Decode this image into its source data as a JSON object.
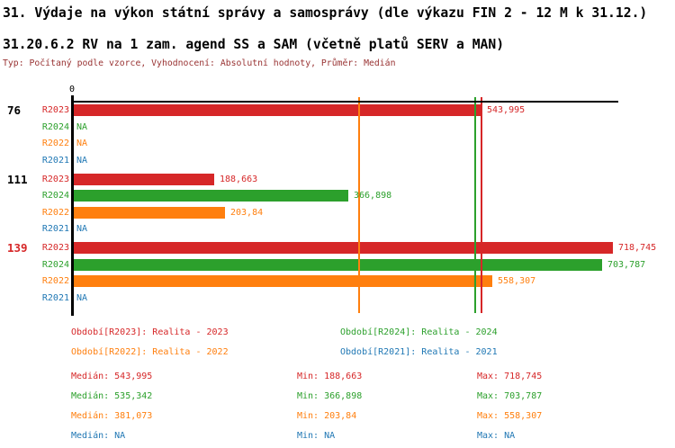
{
  "title": "31. Výdaje na výkon státní správy a samosprávy (dle výkazu FIN 2 - 12 M k 31.12.)",
  "subtitle": "31.20.6.2 RV na 1 zam. agend SS a SAM (včetně platů SERV a MAN)",
  "meta_line": "Typ: Počítaný podle vzorce, Vyhodnocení: Absolutní hodnoty, Průměr: Medián",
  "meta_color": "#993333",
  "chart_data": {
    "type": "bar",
    "orientation": "horizontal",
    "zero_tick_label": "0",
    "grid": false,
    "series_colors": {
      "R2023": "#d62728",
      "R2024": "#2ca02c",
      "R2022": "#ff7f0e",
      "R2021": "#1f77b4"
    },
    "groups": [
      {
        "label": "76",
        "label_color": "#000000",
        "rows": [
          {
            "series": "R2023",
            "value": 543995,
            "display": "543,995"
          },
          {
            "series": "R2024",
            "value": null,
            "display": "NA"
          },
          {
            "series": "R2022",
            "value": null,
            "display": "NA"
          },
          {
            "series": "R2021",
            "value": null,
            "display": "NA"
          }
        ]
      },
      {
        "label": "111",
        "label_color": "#000000",
        "rows": [
          {
            "series": "R2023",
            "value": 188663,
            "display": "188,663"
          },
          {
            "series": "R2024",
            "value": 366898,
            "display": "366,898"
          },
          {
            "series": "R2022",
            "value": 203840,
            "display": "203,84"
          },
          {
            "series": "R2021",
            "value": null,
            "display": "NA"
          }
        ]
      },
      {
        "label": "139",
        "label_color": "#d62728",
        "rows": [
          {
            "series": "R2023",
            "value": 718745,
            "display": "718,745"
          },
          {
            "series": "R2024",
            "value": 703787,
            "display": "703,787"
          },
          {
            "series": "R2022",
            "value": 558307,
            "display": "558,307"
          },
          {
            "series": "R2021",
            "value": null,
            "display": "NA"
          }
        ]
      }
    ],
    "median_lines": [
      {
        "series": "R2023",
        "value": 543995,
        "color": "#d62728"
      },
      {
        "series": "R2024",
        "value": 535342,
        "color": "#2ca02c"
      },
      {
        "series": "R2022",
        "value": 381073,
        "color": "#ff7f0e"
      }
    ]
  },
  "legend": [
    {
      "series": "R2023",
      "text": "Období[R2023]: Realita - 2023",
      "color": "#d62728"
    },
    {
      "series": "R2024",
      "text": "Období[R2024]: Realita - 2024",
      "color": "#2ca02c"
    },
    {
      "series": "R2022",
      "text": "Období[R2022]: Realita - 2022",
      "color": "#ff7f0e"
    },
    {
      "series": "R2021",
      "text": "Období[R2021]: Realita - 2021",
      "color": "#1f77b4"
    }
  ],
  "stats": {
    "median_label": "Medián",
    "min_label": "Min",
    "max_label": "Max",
    "rows": [
      {
        "series": "R2023",
        "color": "#d62728",
        "median": "543,995",
        "min": "188,663",
        "max": "718,745"
      },
      {
        "series": "R2024",
        "color": "#2ca02c",
        "median": "535,342",
        "min": "366,898",
        "max": "703,787"
      },
      {
        "series": "R2022",
        "color": "#ff7f0e",
        "median": "381,073",
        "min": "203,84",
        "max": "558,307"
      },
      {
        "series": "R2021",
        "color": "#1f77b4",
        "median": "NA",
        "min": "NA",
        "max": "NA"
      }
    ]
  }
}
